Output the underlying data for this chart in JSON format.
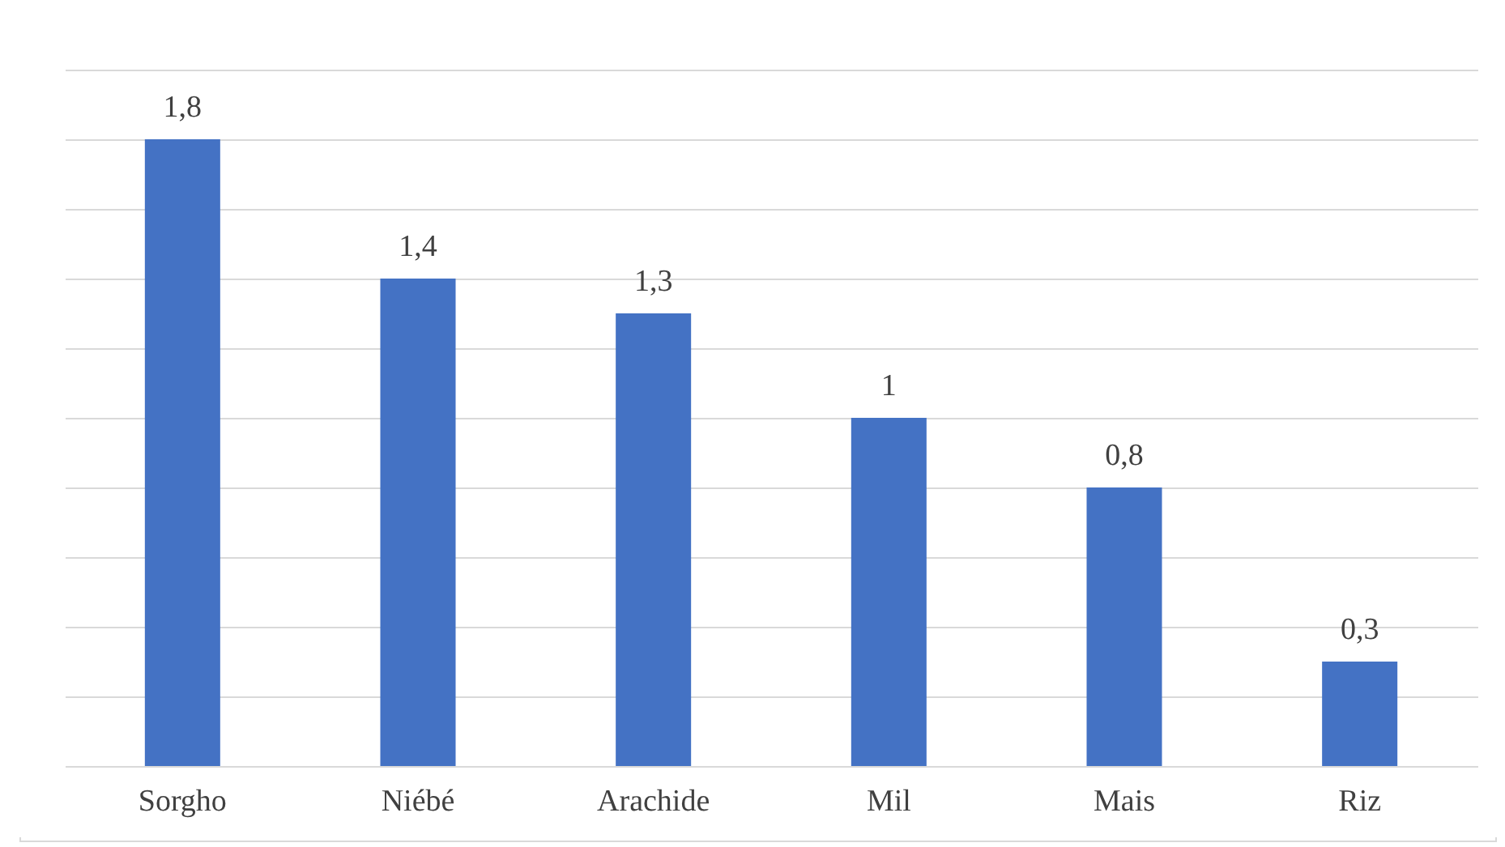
{
  "chart_data": {
    "type": "bar",
    "categories": [
      "Sorgho",
      "Niébé",
      "Arachide",
      "Mil",
      "Mais",
      "Riz"
    ],
    "values": [
      1.8,
      1.4,
      1.3,
      1,
      0.8,
      0.3
    ],
    "color": "#4472c4",
    "ylim": [
      0,
      2
    ],
    "yticks": [
      {
        "value": 0,
        "label": null
      },
      {
        "value": 0.2,
        "label": null
      },
      {
        "value": 0.4,
        "label": null
      },
      {
        "value": 0.6,
        "label": null
      },
      {
        "value": 0.8,
        "label": null
      },
      {
        "value": 1,
        "label": null
      },
      {
        "value": 1.2,
        "label": null
      },
      {
        "value": 1.4,
        "label": null
      },
      {
        "value": 1.6,
        "label": null
      },
      {
        "value": 1.8,
        "label": null
      },
      {
        "value": 2,
        "label": null
      }
    ],
    "value_labels": [
      "1,8",
      "1,4",
      "1,3",
      "1",
      "0,8",
      "0,3"
    ],
    "grid": "y",
    "tick_labels": "x"
  }
}
